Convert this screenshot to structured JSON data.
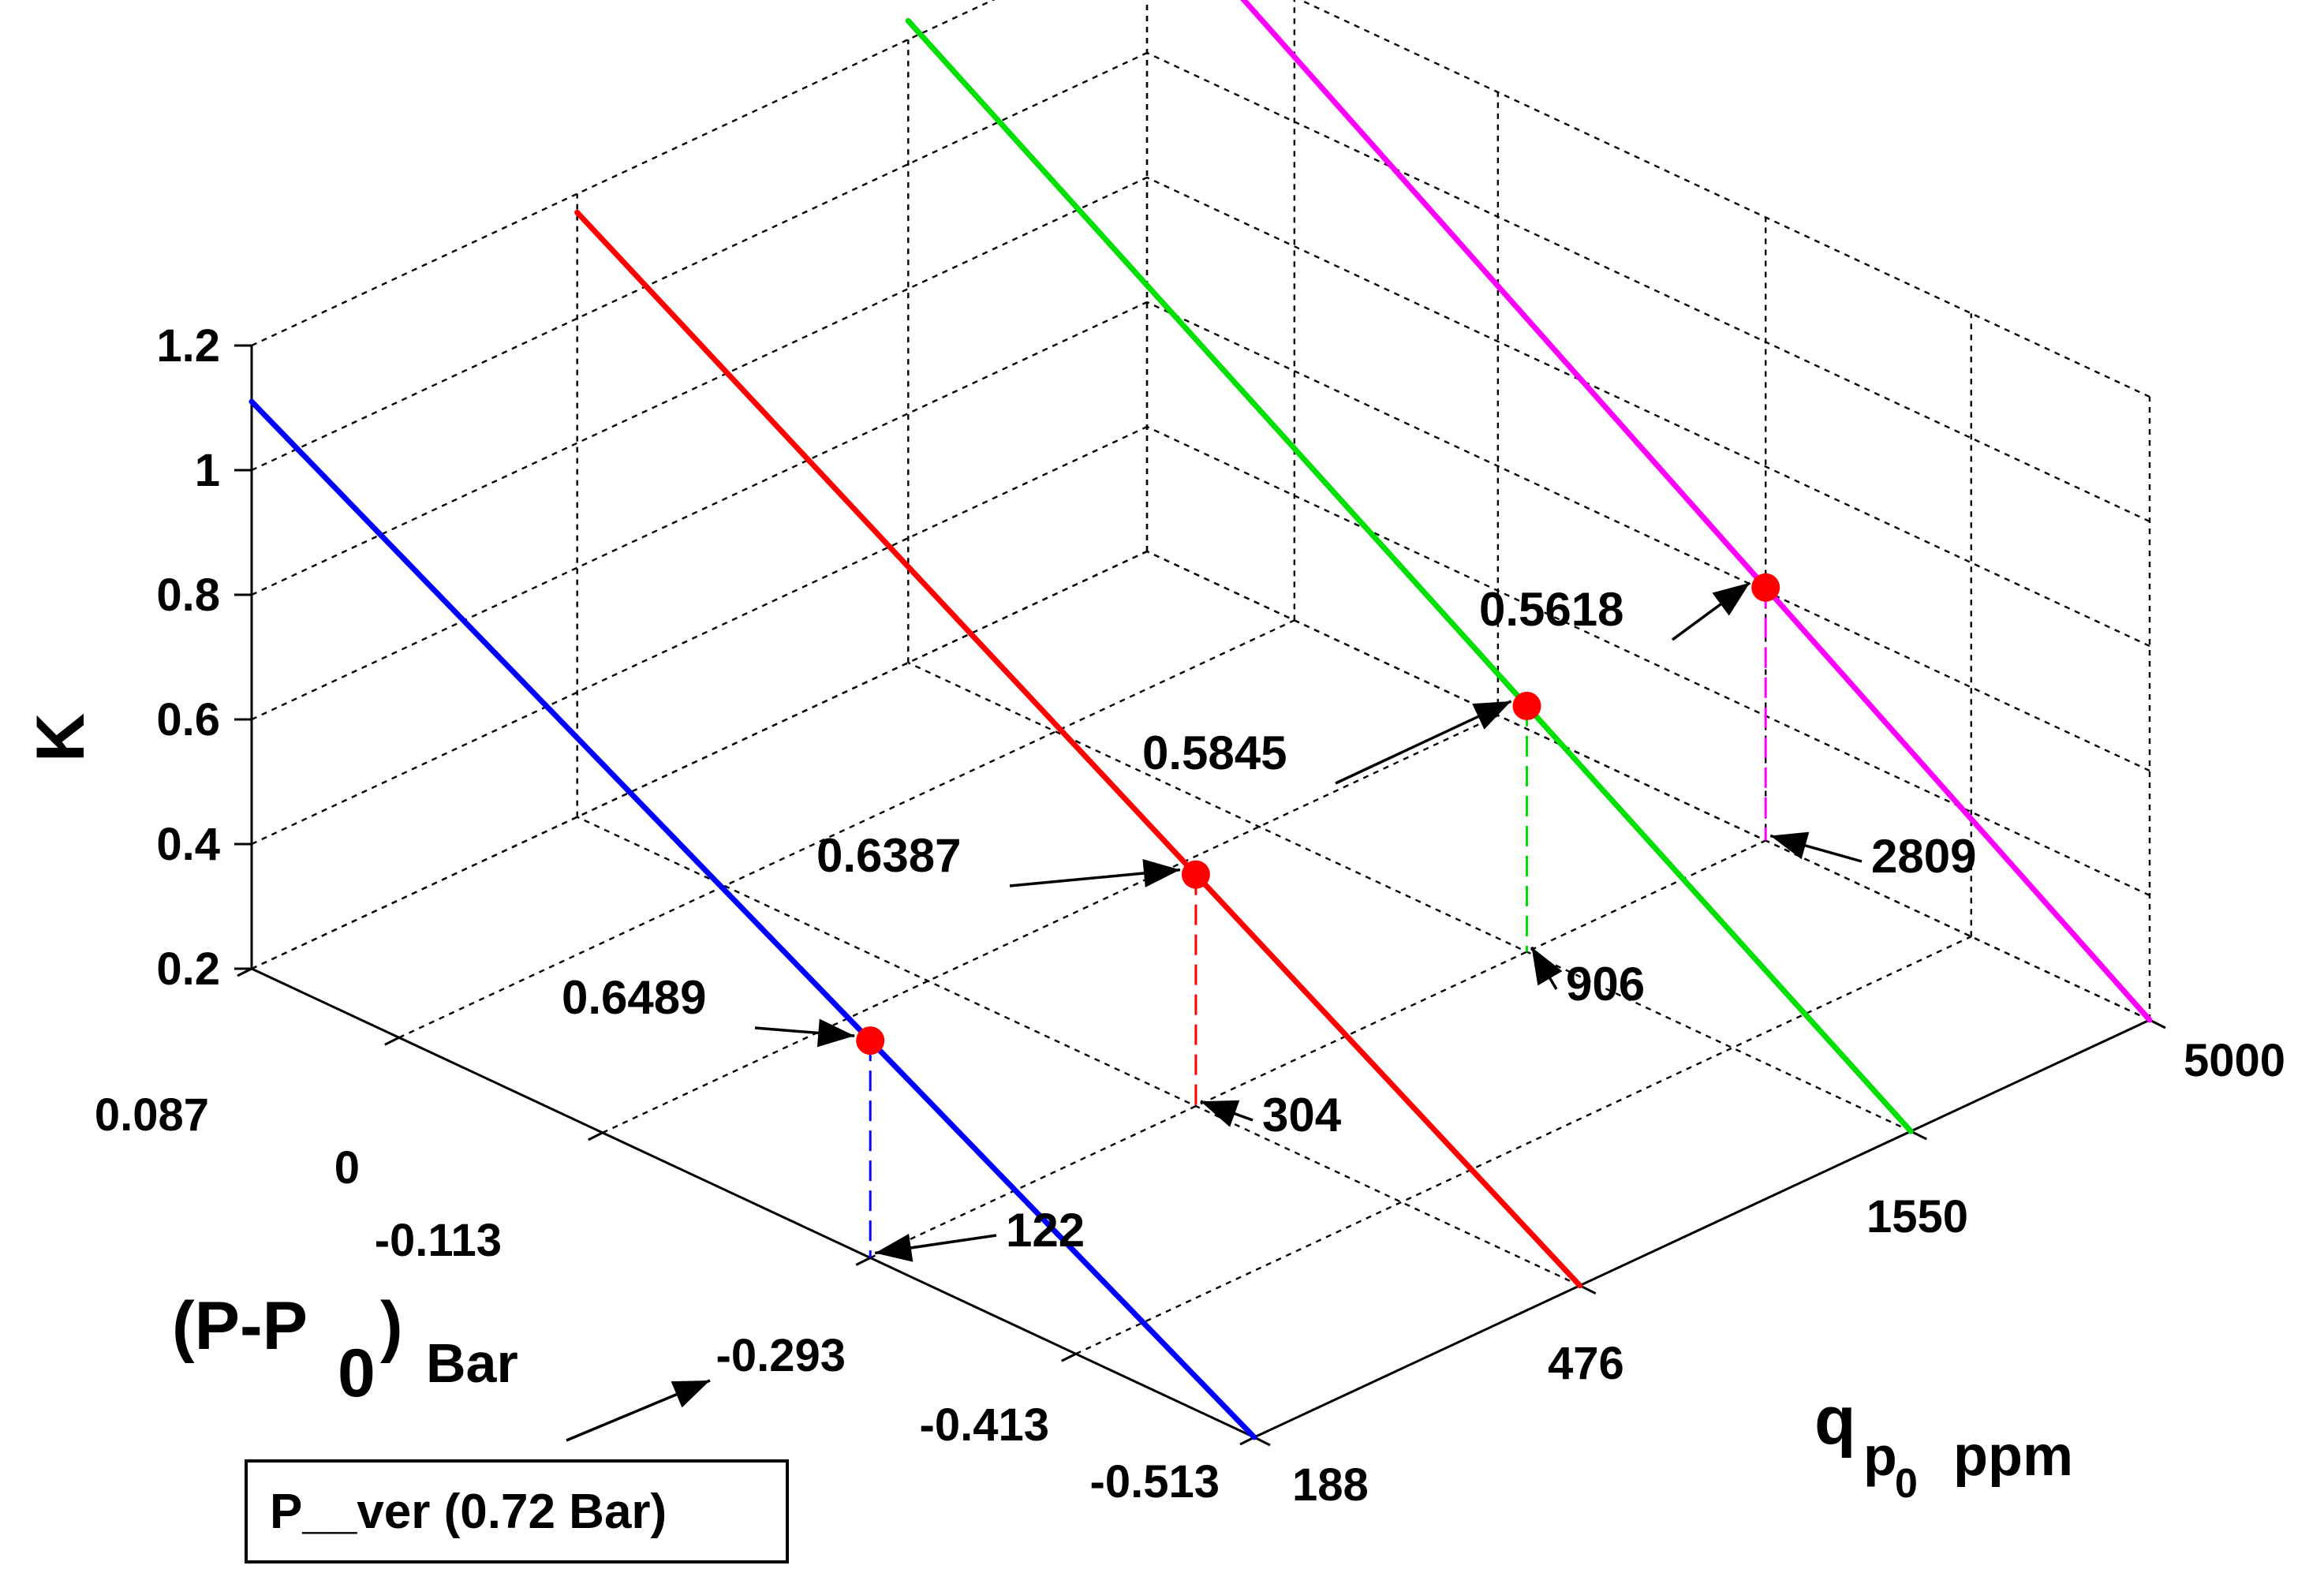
{
  "chart_data": {
    "type": "line",
    "projection": "3d",
    "grid": true,
    "axes": {
      "x": {
        "label": "(P-P0) Bar",
        "label_main": "(P-P",
        "label_sub": "0",
        "label_close": ")",
        "label_unit": "Bar",
        "ticks": [
          "0.087",
          "0",
          "-0.113",
          "-0.293",
          "-0.413",
          "-0.513"
        ],
        "tick_values": [
          0.087,
          0,
          -0.113,
          -0.293,
          -0.413,
          -0.513
        ],
        "range": [
          0.087,
          -0.513
        ]
      },
      "y": {
        "label": "qp0 ppm",
        "label_main": "q",
        "label_sub": "p",
        "label_subsub": "0",
        "label_unit": "ppm",
        "ticks": [
          "188",
          "476",
          "1550",
          "5000"
        ],
        "tick_values": [
          188,
          476,
          1550,
          5000
        ],
        "range": [
          188,
          5000
        ]
      },
      "z": {
        "label": "K",
        "ticks": [
          "0.2",
          "0.4",
          "0.6",
          "0.8",
          "1",
          "1.2"
        ],
        "tick_values": [
          0.2,
          0.4,
          0.6,
          0.8,
          1,
          1.2
        ],
        "range": [
          0.2,
          1.2
        ]
      }
    },
    "series": [
      {
        "color": "#0000ff",
        "qp0": 188,
        "p_start": 0.087,
        "k_start": 1.11,
        "p_end": -0.513,
        "k_end": 0.2,
        "marker": {
          "p": -0.293,
          "k": 0.6489,
          "label": "0.6489",
          "qp0_label": "122"
        }
      },
      {
        "color": "#ff0000",
        "qp0": 476,
        "p_start": 0.087,
        "k_start": 1.17,
        "p_end": -0.513,
        "k_end": 0.2,
        "marker": {
          "p": -0.293,
          "k": 0.6387,
          "label": "0.6387",
          "qp0_label": "304"
        }
      },
      {
        "color": "#00e000",
        "qp0": 1550,
        "p_start": 0.087,
        "k_start": 1.23,
        "p_end": -0.513,
        "k_end": 0.2,
        "marker": {
          "p": -0.293,
          "k": 0.5845,
          "label": "0.5845",
          "qp0_label": "906"
        }
      },
      {
        "color": "#ff00ff",
        "qp0": 5000,
        "p_start": 0.087,
        "k_start": 1.26,
        "p_end": -0.513,
        "k_end": 0.2,
        "marker": {
          "p": -0.293,
          "k": 0.5618,
          "label": "0.5618",
          "qp0_label": "2809"
        }
      }
    ],
    "marker_color": "#ff0000",
    "callout": {
      "text": "P__ver (0.72 Bar)",
      "points_to_tick": "-0.293"
    }
  }
}
